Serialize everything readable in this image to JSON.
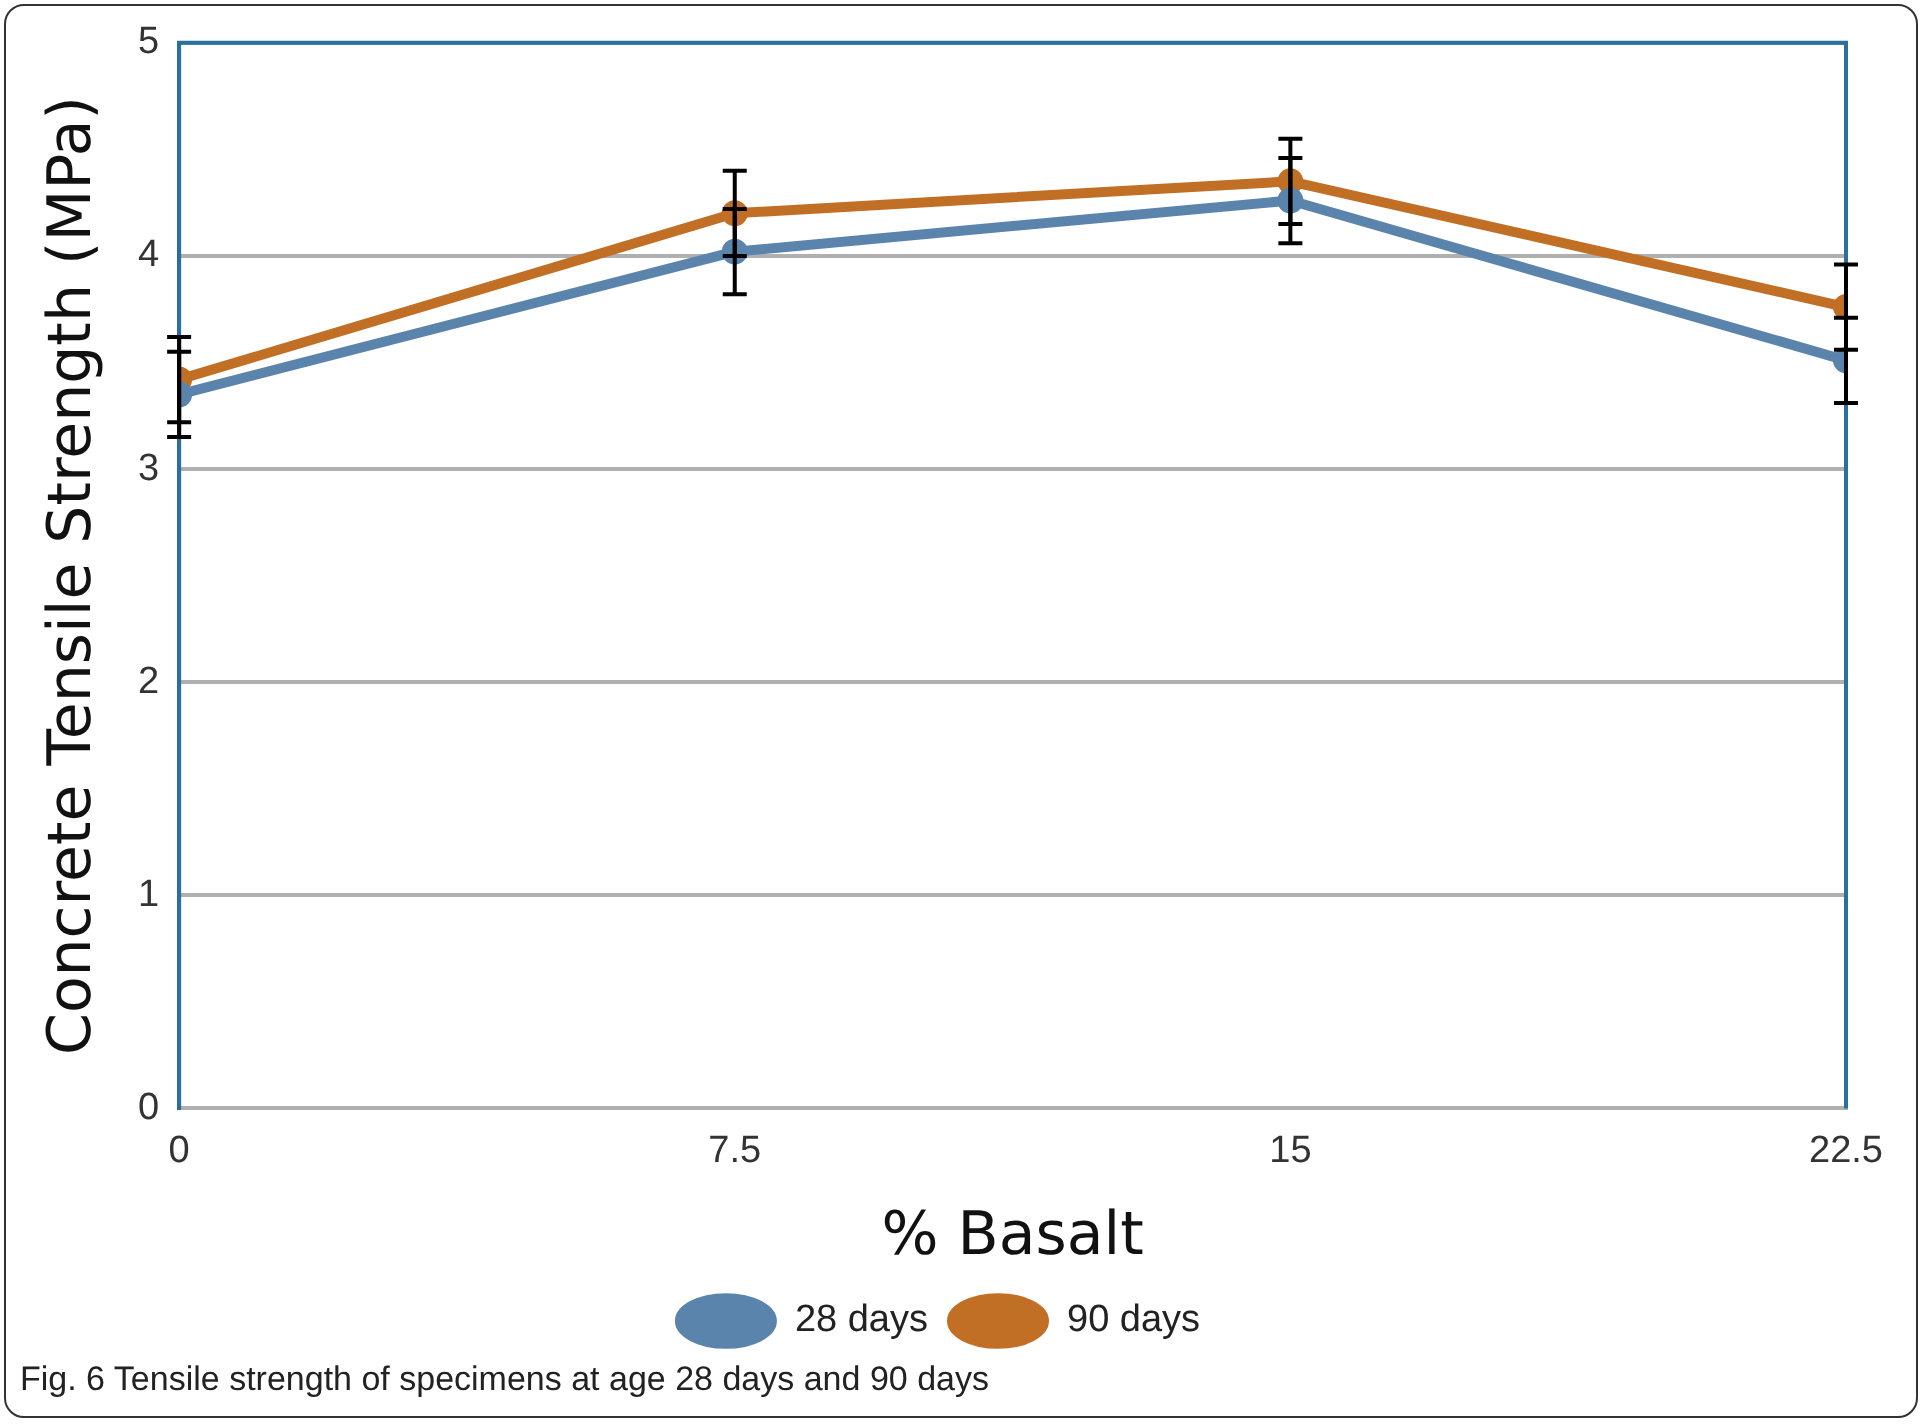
{
  "chart_data": {
    "type": "line",
    "xlabel": "% Basalt",
    "ylabel": "Concrete Tensile Strength (MPa)",
    "x": [
      0,
      7.5,
      15,
      22.5
    ],
    "xlim": [
      0,
      22.5
    ],
    "xticks": [
      0,
      7.5,
      15,
      22.5
    ],
    "ylim": [
      0,
      5
    ],
    "yticks": [
      0,
      1,
      2,
      3,
      4,
      5
    ],
    "series": [
      {
        "name": "28 days",
        "color": "#5b84ad",
        "values": [
          3.35,
          4.02,
          4.26,
          3.51
        ],
        "errors": [
          0.2,
          0.2,
          0.2,
          0.2
        ]
      },
      {
        "name": "90 days",
        "color": "#c26f26",
        "values": [
          3.42,
          4.2,
          4.35,
          3.76
        ],
        "errors": [
          0.2,
          0.2,
          0.2,
          0.2
        ]
      }
    ],
    "grid": "y",
    "legend": "bottom",
    "marker": "circle",
    "line_style": "solid",
    "annotations": [
      "Fig. 6 Tensile strength of specimens at age 28 days and 90 days"
    ]
  }
}
